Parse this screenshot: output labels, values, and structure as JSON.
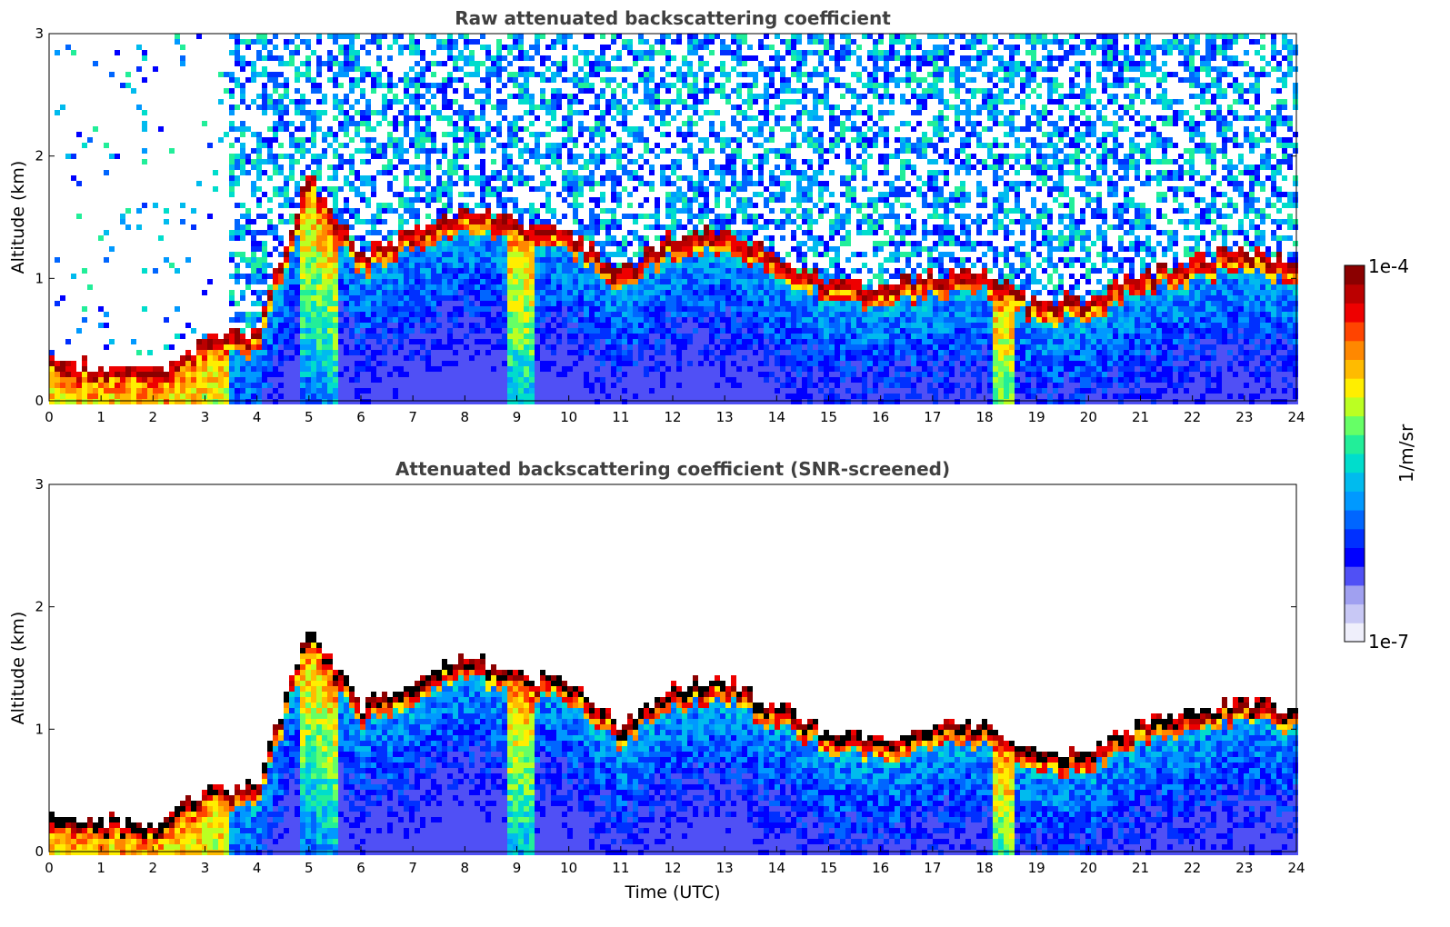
{
  "chart_data": [
    {
      "type": "heatmap",
      "title": "Raw attenuated backscattering coefficient",
      "xlabel": "",
      "ylabel": "Altitude (km)",
      "xlim": [
        0,
        24
      ],
      "ylim": [
        0,
        3
      ],
      "xticks": [
        "0",
        "1",
        "2",
        "3",
        "4",
        "5",
        "6",
        "7",
        "8",
        "9",
        "10",
        "11",
        "12",
        "13",
        "14",
        "15",
        "16",
        "17",
        "18",
        "19",
        "20",
        "21",
        "22",
        "23",
        "24"
      ],
      "yticks": [
        "0",
        "1",
        "2",
        "3"
      ],
      "screened": false,
      "layer_top_km_hourly": [
        0.3,
        0.22,
        0.17,
        0.45,
        0.5,
        1.8,
        1.15,
        1.35,
        1.55,
        1.4,
        1.35,
        1.0,
        1.3,
        1.35,
        1.15,
        0.95,
        0.85,
        1.0,
        1.0,
        0.75,
        0.8,
        1.0,
        1.1,
        1.2,
        1.1
      ]
    },
    {
      "type": "heatmap",
      "title": "Attenuated backscattering coefficient (SNR-screened)",
      "xlabel": "Time (UTC)",
      "ylabel": "Altitude (km)",
      "xlim": [
        0,
        24
      ],
      "ylim": [
        0,
        3
      ],
      "xticks": [
        "0",
        "1",
        "2",
        "3",
        "4",
        "5",
        "6",
        "7",
        "8",
        "9",
        "10",
        "11",
        "12",
        "13",
        "14",
        "15",
        "16",
        "17",
        "18",
        "19",
        "20",
        "21",
        "22",
        "23",
        "24"
      ],
      "yticks": [
        "0",
        "1",
        "2",
        "3"
      ],
      "screened": true,
      "layer_top_km_hourly": [
        0.3,
        0.22,
        0.17,
        0.45,
        0.5,
        1.8,
        1.15,
        1.35,
        1.55,
        1.4,
        1.35,
        1.0,
        1.3,
        1.35,
        1.15,
        0.95,
        0.85,
        1.0,
        1.0,
        0.75,
        0.8,
        1.0,
        1.1,
        1.2,
        1.1
      ]
    }
  ],
  "colorbar": {
    "label": "1/m/sr",
    "max_label": "1e-4",
    "min_label": "1e-7",
    "colors": [
      "#efeffb",
      "#c8c8f5",
      "#a0a0f0",
      "#5050f5",
      "#0000ff",
      "#0030ff",
      "#0066ff",
      "#0099ff",
      "#00bbee",
      "#00ddcc",
      "#22ee99",
      "#66ff66",
      "#bbff22",
      "#ffee00",
      "#ffbb00",
      "#ff8800",
      "#ff4400",
      "#ee0000",
      "#bb0000",
      "#8b0000"
    ]
  }
}
